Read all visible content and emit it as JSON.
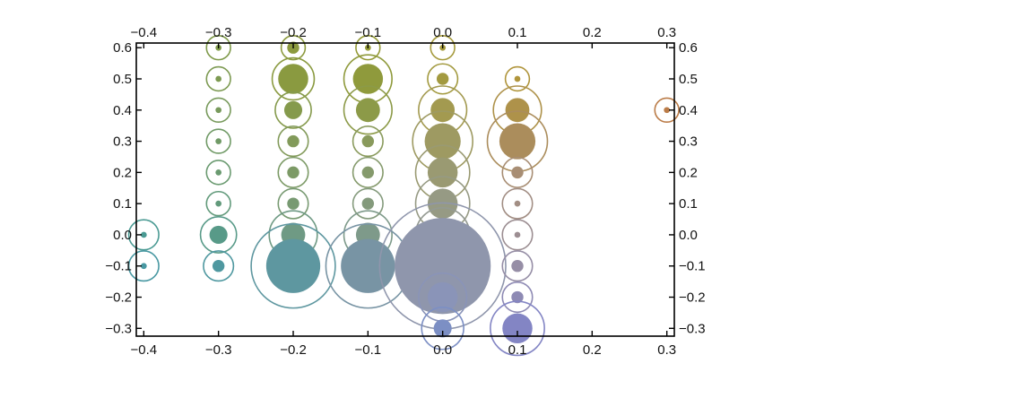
{
  "chart_data": {
    "type": "scatter",
    "subtype": "bubble",
    "title": "",
    "xlabel": "",
    "ylabel": "",
    "xlim": [
      -0.41,
      0.31
    ],
    "ylim": [
      -0.325,
      0.615
    ],
    "grid": false,
    "legend": "none",
    "x_ticks": [
      -0.4,
      -0.3,
      -0.2,
      -0.1,
      0.0,
      0.1,
      0.2,
      0.3
    ],
    "y_ticks": [
      -0.3,
      -0.2,
      -0.1,
      0.0,
      0.1,
      0.2,
      0.3,
      0.4,
      0.5,
      0.6
    ],
    "x_tick_labels": [
      "−0.4",
      "−0.3",
      "−0.2",
      "−0.1",
      "0.0",
      "0.1",
      "0.2",
      "0.3"
    ],
    "y_tick_labels": [
      "−0.3",
      "−0.2",
      "−0.1",
      "0.0",
      "0.1",
      "0.2",
      "0.3",
      "0.4",
      "0.5",
      "0.6"
    ],
    "axes_mirrored": "ticks and labels on all four sides",
    "color_scheme": "color varies with y (blue at bottom, gray middle, olive/gold top) and x (teal left, mauve/brown right)",
    "points": [
      {
        "x": -0.4,
        "y": 0.0,
        "inner": 1,
        "outer": 5,
        "color": "#4a9a93"
      },
      {
        "x": -0.4,
        "y": -0.1,
        "inner": 1,
        "outer": 5,
        "color": "#4898a2"
      },
      {
        "x": -0.3,
        "y": 0.6,
        "inner": 1,
        "outer": 4,
        "color": "#7f9a4a"
      },
      {
        "x": -0.3,
        "y": 0.5,
        "inner": 1,
        "outer": 4,
        "color": "#7d9a52"
      },
      {
        "x": -0.3,
        "y": 0.4,
        "inner": 1,
        "outer": 4,
        "color": "#789a5c"
      },
      {
        "x": -0.3,
        "y": 0.3,
        "inner": 1,
        "outer": 4,
        "color": "#709a66"
      },
      {
        "x": -0.3,
        "y": 0.2,
        "inner": 1,
        "outer": 4,
        "color": "#6a9a70"
      },
      {
        "x": -0.3,
        "y": 0.1,
        "inner": 1,
        "outer": 4,
        "color": "#629a7b"
      },
      {
        "x": -0.3,
        "y": 0.0,
        "inner": 3,
        "outer": 6,
        "color": "#589a88"
      },
      {
        "x": -0.3,
        "y": -0.1,
        "inner": 2,
        "outer": 5,
        "color": "#4f98a0"
      },
      {
        "x": -0.2,
        "y": 0.6,
        "inner": 2,
        "outer": 4,
        "color": "#8c9a3e"
      },
      {
        "x": -0.2,
        "y": 0.5,
        "inner": 5,
        "outer": 7,
        "color": "#8a9a40"
      },
      {
        "x": -0.2,
        "y": 0.4,
        "inner": 3,
        "outer": 6,
        "color": "#859a4c"
      },
      {
        "x": -0.2,
        "y": 0.3,
        "inner": 2,
        "outer": 5,
        "color": "#829a5a"
      },
      {
        "x": -0.2,
        "y": 0.2,
        "inner": 2,
        "outer": 5,
        "color": "#7c9a66"
      },
      {
        "x": -0.2,
        "y": 0.1,
        "inner": 2,
        "outer": 5,
        "color": "#789a72"
      },
      {
        "x": -0.2,
        "y": 0.0,
        "inner": 4,
        "outer": 8,
        "color": "#6f9a84"
      },
      {
        "x": -0.2,
        "y": -0.1,
        "inner": 9,
        "outer": 14,
        "color": "#5e97a0"
      },
      {
        "x": -0.1,
        "y": 0.6,
        "inner": 1,
        "outer": 4,
        "color": "#949a36"
      },
      {
        "x": -0.1,
        "y": 0.5,
        "inner": 5,
        "outer": 8,
        "color": "#8f9a3c"
      },
      {
        "x": -0.1,
        "y": 0.4,
        "inner": 4,
        "outer": 8,
        "color": "#8c9a48"
      },
      {
        "x": -0.1,
        "y": 0.3,
        "inner": 2,
        "outer": 5,
        "color": "#899a5c"
      },
      {
        "x": -0.1,
        "y": 0.2,
        "inner": 2,
        "outer": 5,
        "color": "#859a6c"
      },
      {
        "x": -0.1,
        "y": 0.1,
        "inner": 2,
        "outer": 5,
        "color": "#849a7c"
      },
      {
        "x": -0.1,
        "y": 0.0,
        "inner": 4,
        "outer": 8,
        "color": "#7e9a8a"
      },
      {
        "x": -0.1,
        "y": -0.1,
        "inner": 9,
        "outer": 14,
        "color": "#7894a4"
      },
      {
        "x": 0.0,
        "y": 0.6,
        "inner": 1,
        "outer": 4,
        "color": "#a59a3c"
      },
      {
        "x": 0.0,
        "y": 0.5,
        "inner": 2,
        "outer": 5,
        "color": "#a39a40"
      },
      {
        "x": 0.0,
        "y": 0.4,
        "inner": 4,
        "outer": 8,
        "color": "#a39a50"
      },
      {
        "x": 0.0,
        "y": 0.3,
        "inner": 6,
        "outer": 10,
        "color": "#9e9a62"
      },
      {
        "x": 0.0,
        "y": 0.2,
        "inner": 5,
        "outer": 9,
        "color": "#9a9a72"
      },
      {
        "x": 0.0,
        "y": 0.1,
        "inner": 5,
        "outer": 9,
        "color": "#969a84"
      },
      {
        "x": 0.0,
        "y": 0.0,
        "inner": 5,
        "outer": 9,
        "color": "#949a92"
      },
      {
        "x": 0.0,
        "y": -0.1,
        "inner": 16,
        "outer": 21,
        "color": "#8f96ac"
      },
      {
        "x": 0.0,
        "y": -0.2,
        "inner": 5,
        "outer": 8,
        "color": "#8a94b8"
      },
      {
        "x": 0.0,
        "y": -0.3,
        "inner": 3,
        "outer": 7,
        "color": "#7c8fc4"
      },
      {
        "x": 0.1,
        "y": 0.5,
        "inner": 1,
        "outer": 4,
        "color": "#b0953c"
      },
      {
        "x": 0.1,
        "y": 0.4,
        "inner": 4,
        "outer": 8,
        "color": "#ae924a"
      },
      {
        "x": 0.1,
        "y": 0.3,
        "inner": 6,
        "outer": 10,
        "color": "#ab8d5c"
      },
      {
        "x": 0.1,
        "y": 0.2,
        "inner": 2,
        "outer": 5,
        "color": "#a88e74"
      },
      {
        "x": 0.1,
        "y": 0.1,
        "inner": 1,
        "outer": 5,
        "color": "#a28e84"
      },
      {
        "x": 0.1,
        "y": 0.0,
        "inner": 1,
        "outer": 5,
        "color": "#9c8e92"
      },
      {
        "x": 0.1,
        "y": -0.1,
        "inner": 2,
        "outer": 5,
        "color": "#968ea6"
      },
      {
        "x": 0.1,
        "y": -0.2,
        "inner": 2,
        "outer": 5,
        "color": "#8e8ab4"
      },
      {
        "x": 0.1,
        "y": -0.3,
        "inner": 5,
        "outer": 9,
        "color": "#8385c4"
      },
      {
        "x": 0.3,
        "y": 0.4,
        "inner": 1,
        "outer": 4,
        "color": "#bb7c48"
      }
    ]
  }
}
